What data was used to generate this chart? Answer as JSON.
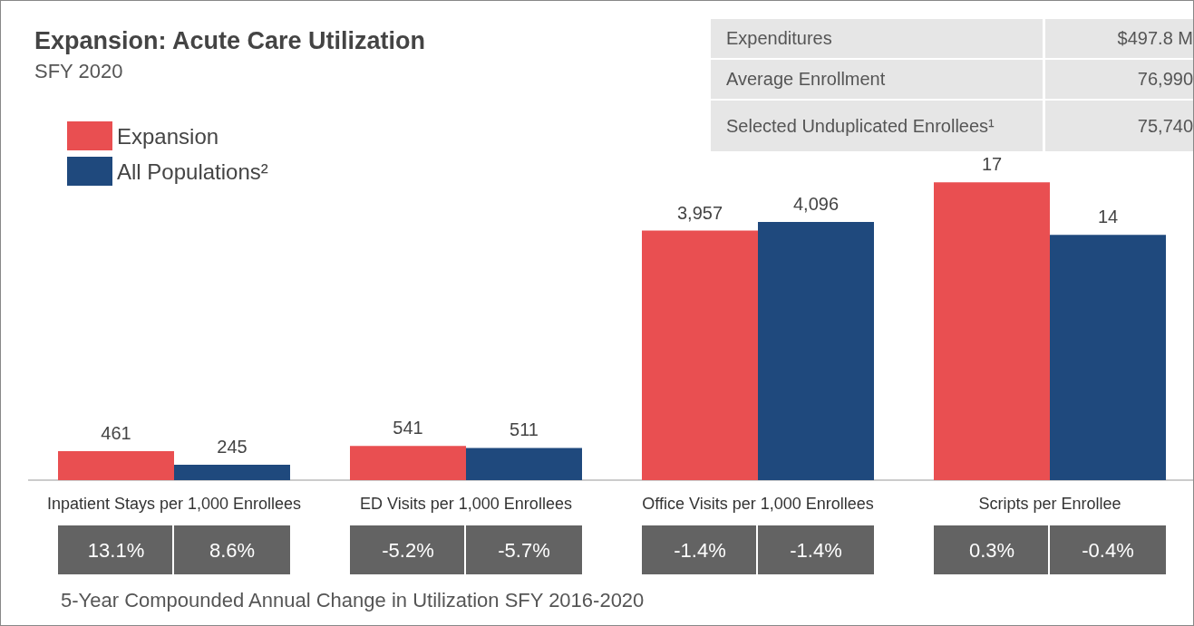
{
  "chart_data": [
    {
      "type": "bar",
      "title": "Expansion: Acute Care Utilization",
      "subtitle": "SFY 2020",
      "categories": [
        "Inpatient Stays per 1,000 Enrollees",
        "ED Visits per 1,000 Enrollees",
        "Office Visits per 1,000 Enrollees",
        "Scripts per Enrollee"
      ],
      "series": [
        {
          "name": "Expansion",
          "color": "#e94f51",
          "values": [
            461,
            541,
            3957,
            null
          ],
          "value_labels": [
            "461",
            "541",
            "3,957",
            null
          ]
        },
        {
          "name": "All Populations²",
          "color": "#1f497d",
          "values": [
            245,
            511,
            4096,
            null
          ],
          "value_labels": [
            "245",
            "511",
            "4,096",
            null
          ]
        },
        {
          "color": "#e94f51",
          "axis": "y2",
          "values": [
            null,
            null,
            null,
            17
          ],
          "value_labels": [
            null,
            null,
            null,
            "17"
          ]
        },
        {
          "color": "#1f497d",
          "axis": "y2",
          "values": [
            null,
            null,
            null,
            14
          ],
          "value_labels": [
            null,
            null,
            null,
            "14"
          ]
        }
      ],
      "legend": "top left",
      "tick_labels": "x",
      "xlabel": "5-Year Compounded Annual Change in Utilization SFY 2016-2020",
      "annotations": [
        "13.1%",
        "8.6%",
        "-5.2%",
        "-5.7%",
        "-1.4%",
        "-1.4%",
        "0.3%",
        "-0.4%"
      ]
    },
    {
      "type": "other",
      "annotations": [
        "Expenditures",
        "$497.8 M",
        "Average Enrollment",
        "76,990",
        "Selected Unduplicated Enrollees¹",
        "75,740"
      ]
    }
  ]
}
